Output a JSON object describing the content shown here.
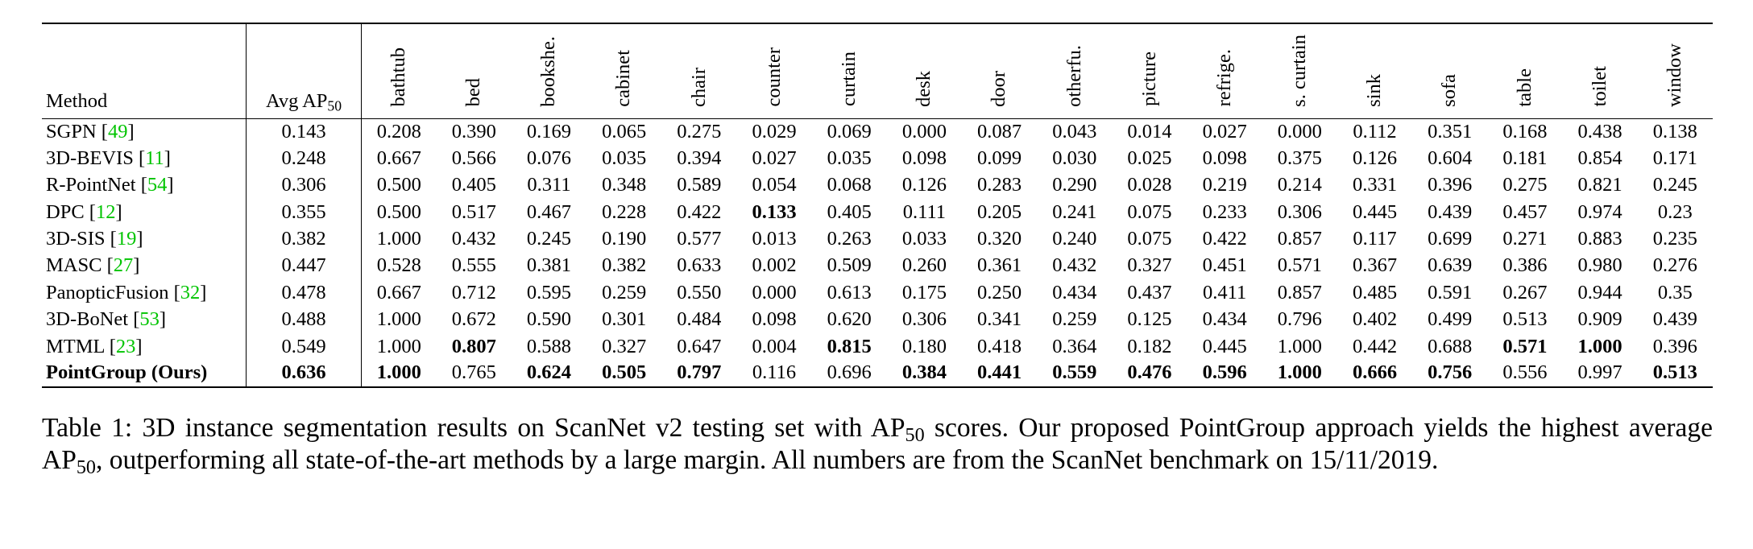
{
  "table": {
    "header": {
      "method": "Method",
      "avg_main": "Avg AP",
      "avg_sub": "50",
      "classes": [
        "bathtub",
        "bed",
        "bookshe.",
        "cabinet",
        "chair",
        "counter",
        "curtain",
        "desk",
        "door",
        "otherfu.",
        "picture",
        "refrige.",
        "s. curtain",
        "sink",
        "sofa",
        "table",
        "toilet",
        "window"
      ]
    },
    "rows": [
      {
        "method": "SGPN",
        "ref": "49",
        "avg": "0.143",
        "values": [
          "0.208",
          "0.390",
          "0.169",
          "0.065",
          "0.275",
          "0.029",
          "0.069",
          "0.000",
          "0.087",
          "0.043",
          "0.014",
          "0.027",
          "0.000",
          "0.112",
          "0.351",
          "0.168",
          "0.438",
          "0.138"
        ],
        "bold": []
      },
      {
        "method": "3D-BEVIS",
        "ref": "11",
        "avg": "0.248",
        "values": [
          "0.667",
          "0.566",
          "0.076",
          "0.035",
          "0.394",
          "0.027",
          "0.035",
          "0.098",
          "0.099",
          "0.030",
          "0.025",
          "0.098",
          "0.375",
          "0.126",
          "0.604",
          "0.181",
          "0.854",
          "0.171"
        ],
        "bold": []
      },
      {
        "method": "R-PointNet",
        "ref": "54",
        "avg": "0.306",
        "values": [
          "0.500",
          "0.405",
          "0.311",
          "0.348",
          "0.589",
          "0.054",
          "0.068",
          "0.126",
          "0.283",
          "0.290",
          "0.028",
          "0.219",
          "0.214",
          "0.331",
          "0.396",
          "0.275",
          "0.821",
          "0.245"
        ],
        "bold": []
      },
      {
        "method": "DPC",
        "ref": "12",
        "avg": "0.355",
        "values": [
          "0.500",
          "0.517",
          "0.467",
          "0.228",
          "0.422",
          "0.133",
          "0.405",
          "0.111",
          "0.205",
          "0.241",
          "0.075",
          "0.233",
          "0.306",
          "0.445",
          "0.439",
          "0.457",
          "0.974",
          "0.23"
        ],
        "bold": [
          5
        ]
      },
      {
        "method": "3D-SIS",
        "ref": "19",
        "avg": "0.382",
        "values": [
          "1.000",
          "0.432",
          "0.245",
          "0.190",
          "0.577",
          "0.013",
          "0.263",
          "0.033",
          "0.320",
          "0.240",
          "0.075",
          "0.422",
          "0.857",
          "0.117",
          "0.699",
          "0.271",
          "0.883",
          "0.235"
        ],
        "bold": []
      },
      {
        "method": "MASC",
        "ref": "27",
        "avg": "0.447",
        "values": [
          "0.528",
          "0.555",
          "0.381",
          "0.382",
          "0.633",
          "0.002",
          "0.509",
          "0.260",
          "0.361",
          "0.432",
          "0.327",
          "0.451",
          "0.571",
          "0.367",
          "0.639",
          "0.386",
          "0.980",
          "0.276"
        ],
        "bold": []
      },
      {
        "method": "PanopticFusion",
        "ref": "32",
        "avg": "0.478",
        "values": [
          "0.667",
          "0.712",
          "0.595",
          "0.259",
          "0.550",
          "0.000",
          "0.613",
          "0.175",
          "0.250",
          "0.434",
          "0.437",
          "0.411",
          "0.857",
          "0.485",
          "0.591",
          "0.267",
          "0.944",
          "0.35"
        ],
        "bold": []
      },
      {
        "method": "3D-BoNet",
        "ref": "53",
        "avg": "0.488",
        "values": [
          "1.000",
          "0.672",
          "0.590",
          "0.301",
          "0.484",
          "0.098",
          "0.620",
          "0.306",
          "0.341",
          "0.259",
          "0.125",
          "0.434",
          "0.796",
          "0.402",
          "0.499",
          "0.513",
          "0.909",
          "0.439"
        ],
        "bold": []
      },
      {
        "method": "MTML",
        "ref": "23",
        "avg": "0.549",
        "values": [
          "1.000",
          "0.807",
          "0.588",
          "0.327",
          "0.647",
          "0.004",
          "0.815",
          "0.180",
          "0.418",
          "0.364",
          "0.182",
          "0.445",
          "1.000",
          "0.442",
          "0.688",
          "0.571",
          "1.000",
          "0.396"
        ],
        "bold": [
          1,
          6,
          15,
          16
        ]
      },
      {
        "method": "PointGroup (Ours)",
        "ref": "",
        "avg": "0.636",
        "values": [
          "1.000",
          "0.765",
          "0.624",
          "0.505",
          "0.797",
          "0.116",
          "0.696",
          "0.384",
          "0.441",
          "0.559",
          "0.476",
          "0.596",
          "1.000",
          "0.666",
          "0.756",
          "0.556",
          "0.997",
          "0.513"
        ],
        "bold": [
          0,
          2,
          3,
          4,
          7,
          8,
          9,
          10,
          11,
          12,
          13,
          14,
          17
        ],
        "row_bold": true
      }
    ]
  },
  "caption": {
    "part1": "Table 1: 3D instance segmentation results on ScanNet v2 testing set with AP",
    "sub1": "50",
    "part2": " scores. Our proposed PointGroup approach yields the highest average AP",
    "sub2": "50",
    "part3": ", outperforming all state-of-the-art methods by a large margin. All numbers are from the ScanNet benchmark on 15/11/2019."
  }
}
